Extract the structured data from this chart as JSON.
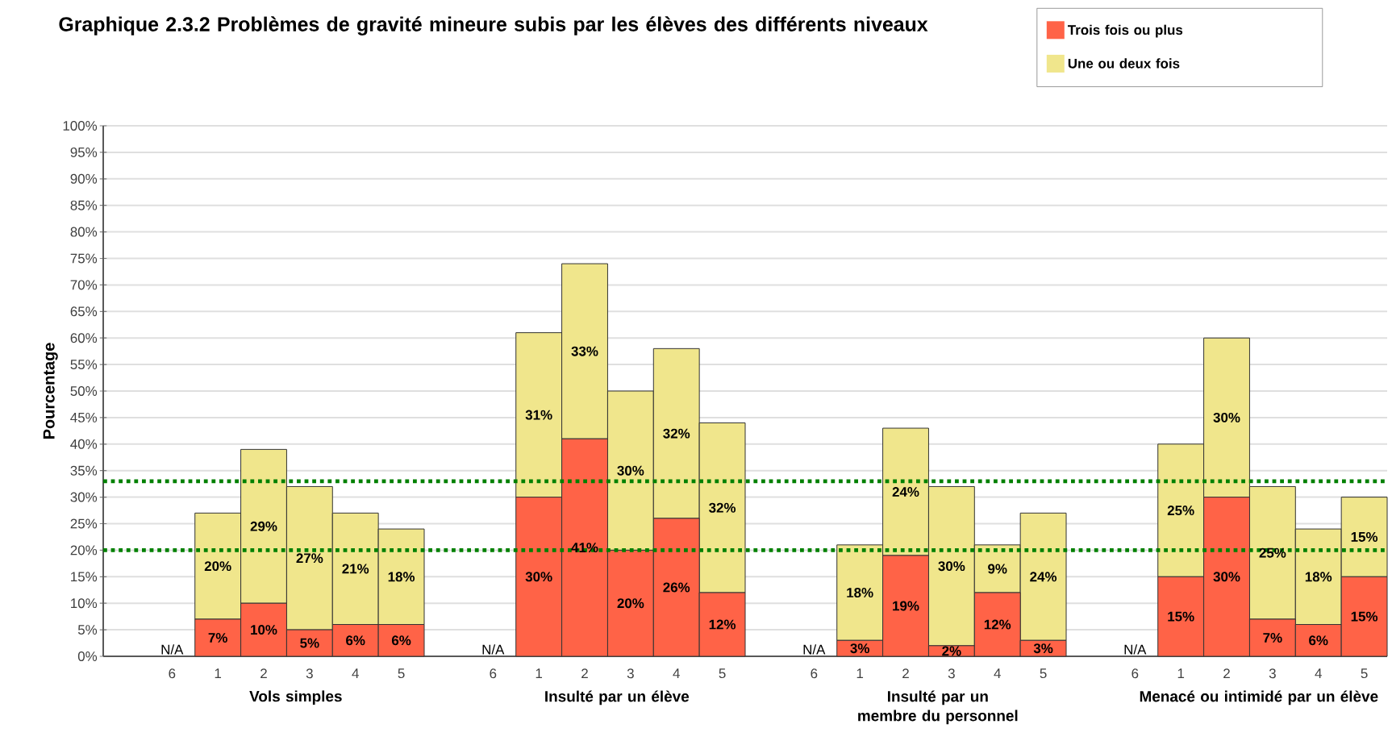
{
  "chart_data": {
    "type": "bar",
    "stacked": true,
    "title": "Graphique 2.3.2  Problèmes de gravité mineure subis par les élèves des différents niveaux",
    "ylabel": "Pourcentage",
    "categories": [
      null,
      "6",
      "1",
      "2",
      "3",
      "4",
      "5",
      null,
      "6",
      "1",
      "2",
      "3",
      "4",
      "5",
      null,
      "6",
      "1",
      "2",
      "3",
      "4",
      "5",
      null,
      "6",
      "1",
      "2",
      "3",
      "4",
      "5"
    ],
    "series": [
      {
        "name": "Trois fois ou plus",
        "color": "#ff6347",
        "values": [
          null,
          null,
          7,
          10,
          5,
          6,
          6,
          null,
          null,
          30,
          41,
          20,
          26,
          12,
          null,
          null,
          3,
          19,
          2,
          12,
          3,
          null,
          null,
          15,
          30,
          7,
          6,
          15
        ],
        "value_labels": [
          null,
          "N/A",
          "7%",
          "10%",
          "5%",
          "6%",
          "6%",
          null,
          "N/A",
          "30%",
          "41%",
          "20%",
          "26%",
          "12%",
          null,
          "N/A",
          "3%",
          "19%",
          "2%",
          "12%",
          "3%",
          null,
          "N/A",
          "15%",
          "30%",
          "7%",
          "6%",
          "15%"
        ]
      },
      {
        "name": "Une ou deux fois",
        "color": "#f0e68c",
        "values": [
          null,
          null,
          20,
          29,
          27,
          21,
          18,
          null,
          null,
          31,
          33,
          30,
          32,
          32,
          null,
          null,
          18,
          24,
          30,
          9,
          24,
          null,
          null,
          25,
          30,
          25,
          18,
          15
        ],
        "value_labels": [
          null,
          null,
          "20%",
          "29%",
          "27%",
          "21%",
          "18%",
          null,
          null,
          "31%",
          "33%",
          "30%",
          "32%",
          "32%",
          null,
          null,
          "18%",
          "24%",
          "30%",
          "9%",
          "24%",
          null,
          null,
          "25%",
          "30%",
          "25%",
          "18%",
          "15%"
        ]
      }
    ],
    "ylim": [
      0,
      100
    ],
    "yticks": [
      {
        "value": 0,
        "label": "0%"
      },
      {
        "value": 5,
        "label": "5%"
      },
      {
        "value": 10,
        "label": "10%"
      },
      {
        "value": 15,
        "label": "15%"
      },
      {
        "value": 20,
        "label": "20%"
      },
      {
        "value": 25,
        "label": "25%"
      },
      {
        "value": 30,
        "label": "30%"
      },
      {
        "value": 35,
        "label": "35%"
      },
      {
        "value": 40,
        "label": "40%"
      },
      {
        "value": 45,
        "label": "45%"
      },
      {
        "value": 50,
        "label": "50%"
      },
      {
        "value": 55,
        "label": "55%"
      },
      {
        "value": 60,
        "label": "60%"
      },
      {
        "value": 65,
        "label": "65%"
      },
      {
        "value": 70,
        "label": "70%"
      },
      {
        "value": 75,
        "label": "75%"
      },
      {
        "value": 80,
        "label": "80%"
      },
      {
        "value": 85,
        "label": "85%"
      },
      {
        "value": 90,
        "label": "90%"
      },
      {
        "value": 95,
        "label": "95%"
      },
      {
        "value": 100,
        "label": "100%"
      }
    ],
    "grid": "y",
    "legend": "top right",
    "ref_lines": [
      {
        "axis": "y",
        "value": 33,
        "color": "#008000",
        "line_style": "dotted"
      },
      {
        "axis": "y",
        "value": 20,
        "color": "#008000",
        "line_style": "dotted"
      }
    ],
    "annotations": [
      "Vols simples",
      "Insulté par un élève",
      "Insulté par un membre du personnel",
      "Menacé ou intimidé par un élève"
    ]
  }
}
